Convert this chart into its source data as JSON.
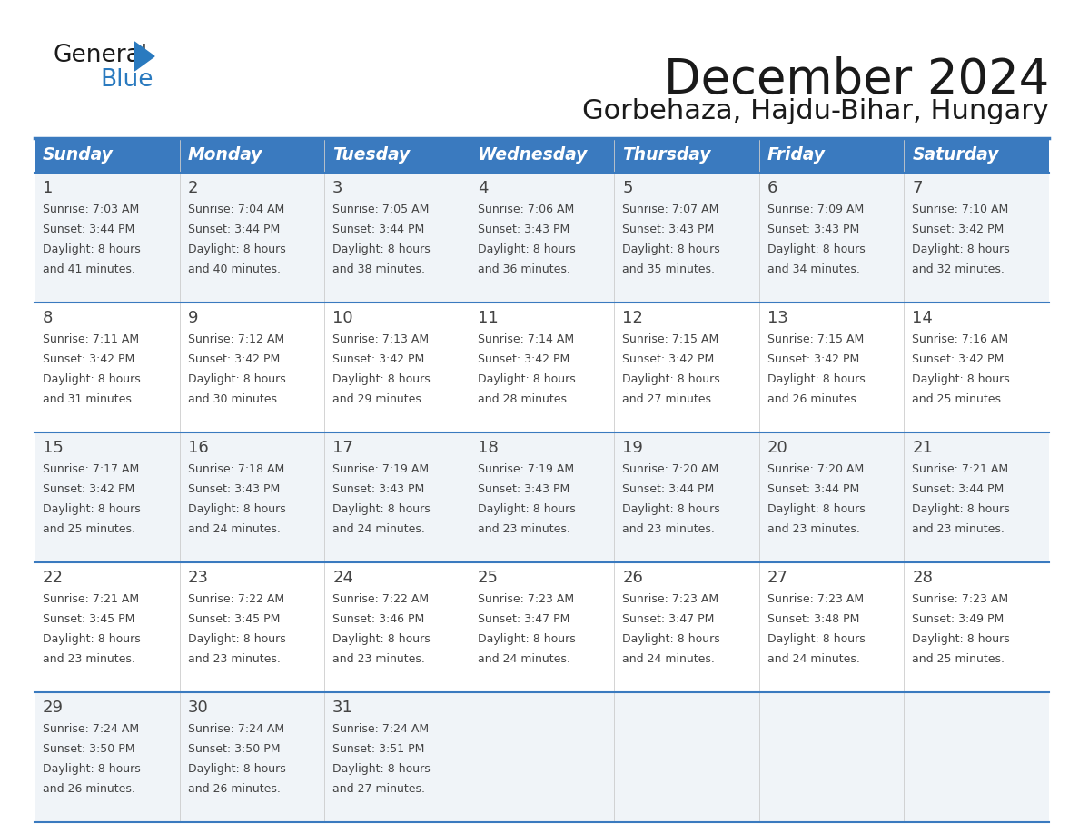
{
  "title": "December 2024",
  "subtitle": "Gorbehaza, Hajdu-Bihar, Hungary",
  "days_of_week": [
    "Sunday",
    "Monday",
    "Tuesday",
    "Wednesday",
    "Thursday",
    "Friday",
    "Saturday"
  ],
  "header_bg": "#3a7abf",
  "header_text": "#ffffff",
  "row_bg_odd": "#f0f4f8",
  "row_bg_even": "#ffffff",
  "separator_color": "#3a7abf",
  "text_color": "#444444",
  "title_color": "#1a1a1a",
  "logo_black": "#1a1a1a",
  "logo_blue": "#2a7abf",
  "calendar_data": [
    [
      {
        "day": 1,
        "sunrise": "7:03 AM",
        "sunset": "3:44 PM",
        "daylight": "8 hours and 41 minutes."
      },
      {
        "day": 2,
        "sunrise": "7:04 AM",
        "sunset": "3:44 PM",
        "daylight": "8 hours and 40 minutes."
      },
      {
        "day": 3,
        "sunrise": "7:05 AM",
        "sunset": "3:44 PM",
        "daylight": "8 hours and 38 minutes."
      },
      {
        "day": 4,
        "sunrise": "7:06 AM",
        "sunset": "3:43 PM",
        "daylight": "8 hours and 36 minutes."
      },
      {
        "day": 5,
        "sunrise": "7:07 AM",
        "sunset": "3:43 PM",
        "daylight": "8 hours and 35 minutes."
      },
      {
        "day": 6,
        "sunrise": "7:09 AM",
        "sunset": "3:43 PM",
        "daylight": "8 hours and 34 minutes."
      },
      {
        "day": 7,
        "sunrise": "7:10 AM",
        "sunset": "3:42 PM",
        "daylight": "8 hours and 32 minutes."
      }
    ],
    [
      {
        "day": 8,
        "sunrise": "7:11 AM",
        "sunset": "3:42 PM",
        "daylight": "8 hours and 31 minutes."
      },
      {
        "day": 9,
        "sunrise": "7:12 AM",
        "sunset": "3:42 PM",
        "daylight": "8 hours and 30 minutes."
      },
      {
        "day": 10,
        "sunrise": "7:13 AM",
        "sunset": "3:42 PM",
        "daylight": "8 hours and 29 minutes."
      },
      {
        "day": 11,
        "sunrise": "7:14 AM",
        "sunset": "3:42 PM",
        "daylight": "8 hours and 28 minutes."
      },
      {
        "day": 12,
        "sunrise": "7:15 AM",
        "sunset": "3:42 PM",
        "daylight": "8 hours and 27 minutes."
      },
      {
        "day": 13,
        "sunrise": "7:15 AM",
        "sunset": "3:42 PM",
        "daylight": "8 hours and 26 minutes."
      },
      {
        "day": 14,
        "sunrise": "7:16 AM",
        "sunset": "3:42 PM",
        "daylight": "8 hours and 25 minutes."
      }
    ],
    [
      {
        "day": 15,
        "sunrise": "7:17 AM",
        "sunset": "3:42 PM",
        "daylight": "8 hours and 25 minutes."
      },
      {
        "day": 16,
        "sunrise": "7:18 AM",
        "sunset": "3:43 PM",
        "daylight": "8 hours and 24 minutes."
      },
      {
        "day": 17,
        "sunrise": "7:19 AM",
        "sunset": "3:43 PM",
        "daylight": "8 hours and 24 minutes."
      },
      {
        "day": 18,
        "sunrise": "7:19 AM",
        "sunset": "3:43 PM",
        "daylight": "8 hours and 23 minutes."
      },
      {
        "day": 19,
        "sunrise": "7:20 AM",
        "sunset": "3:44 PM",
        "daylight": "8 hours and 23 minutes."
      },
      {
        "day": 20,
        "sunrise": "7:20 AM",
        "sunset": "3:44 PM",
        "daylight": "8 hours and 23 minutes."
      },
      {
        "day": 21,
        "sunrise": "7:21 AM",
        "sunset": "3:44 PM",
        "daylight": "8 hours and 23 minutes."
      }
    ],
    [
      {
        "day": 22,
        "sunrise": "7:21 AM",
        "sunset": "3:45 PM",
        "daylight": "8 hours and 23 minutes."
      },
      {
        "day": 23,
        "sunrise": "7:22 AM",
        "sunset": "3:45 PM",
        "daylight": "8 hours and 23 minutes."
      },
      {
        "day": 24,
        "sunrise": "7:22 AM",
        "sunset": "3:46 PM",
        "daylight": "8 hours and 23 minutes."
      },
      {
        "day": 25,
        "sunrise": "7:23 AM",
        "sunset": "3:47 PM",
        "daylight": "8 hours and 24 minutes."
      },
      {
        "day": 26,
        "sunrise": "7:23 AM",
        "sunset": "3:47 PM",
        "daylight": "8 hours and 24 minutes."
      },
      {
        "day": 27,
        "sunrise": "7:23 AM",
        "sunset": "3:48 PM",
        "daylight": "8 hours and 24 minutes."
      },
      {
        "day": 28,
        "sunrise": "7:23 AM",
        "sunset": "3:49 PM",
        "daylight": "8 hours and 25 minutes."
      }
    ],
    [
      {
        "day": 29,
        "sunrise": "7:24 AM",
        "sunset": "3:50 PM",
        "daylight": "8 hours and 26 minutes."
      },
      {
        "day": 30,
        "sunrise": "7:24 AM",
        "sunset": "3:50 PM",
        "daylight": "8 hours and 26 minutes."
      },
      {
        "day": 31,
        "sunrise": "7:24 AM",
        "sunset": "3:51 PM",
        "daylight": "8 hours and 27 minutes."
      },
      null,
      null,
      null,
      null
    ]
  ]
}
